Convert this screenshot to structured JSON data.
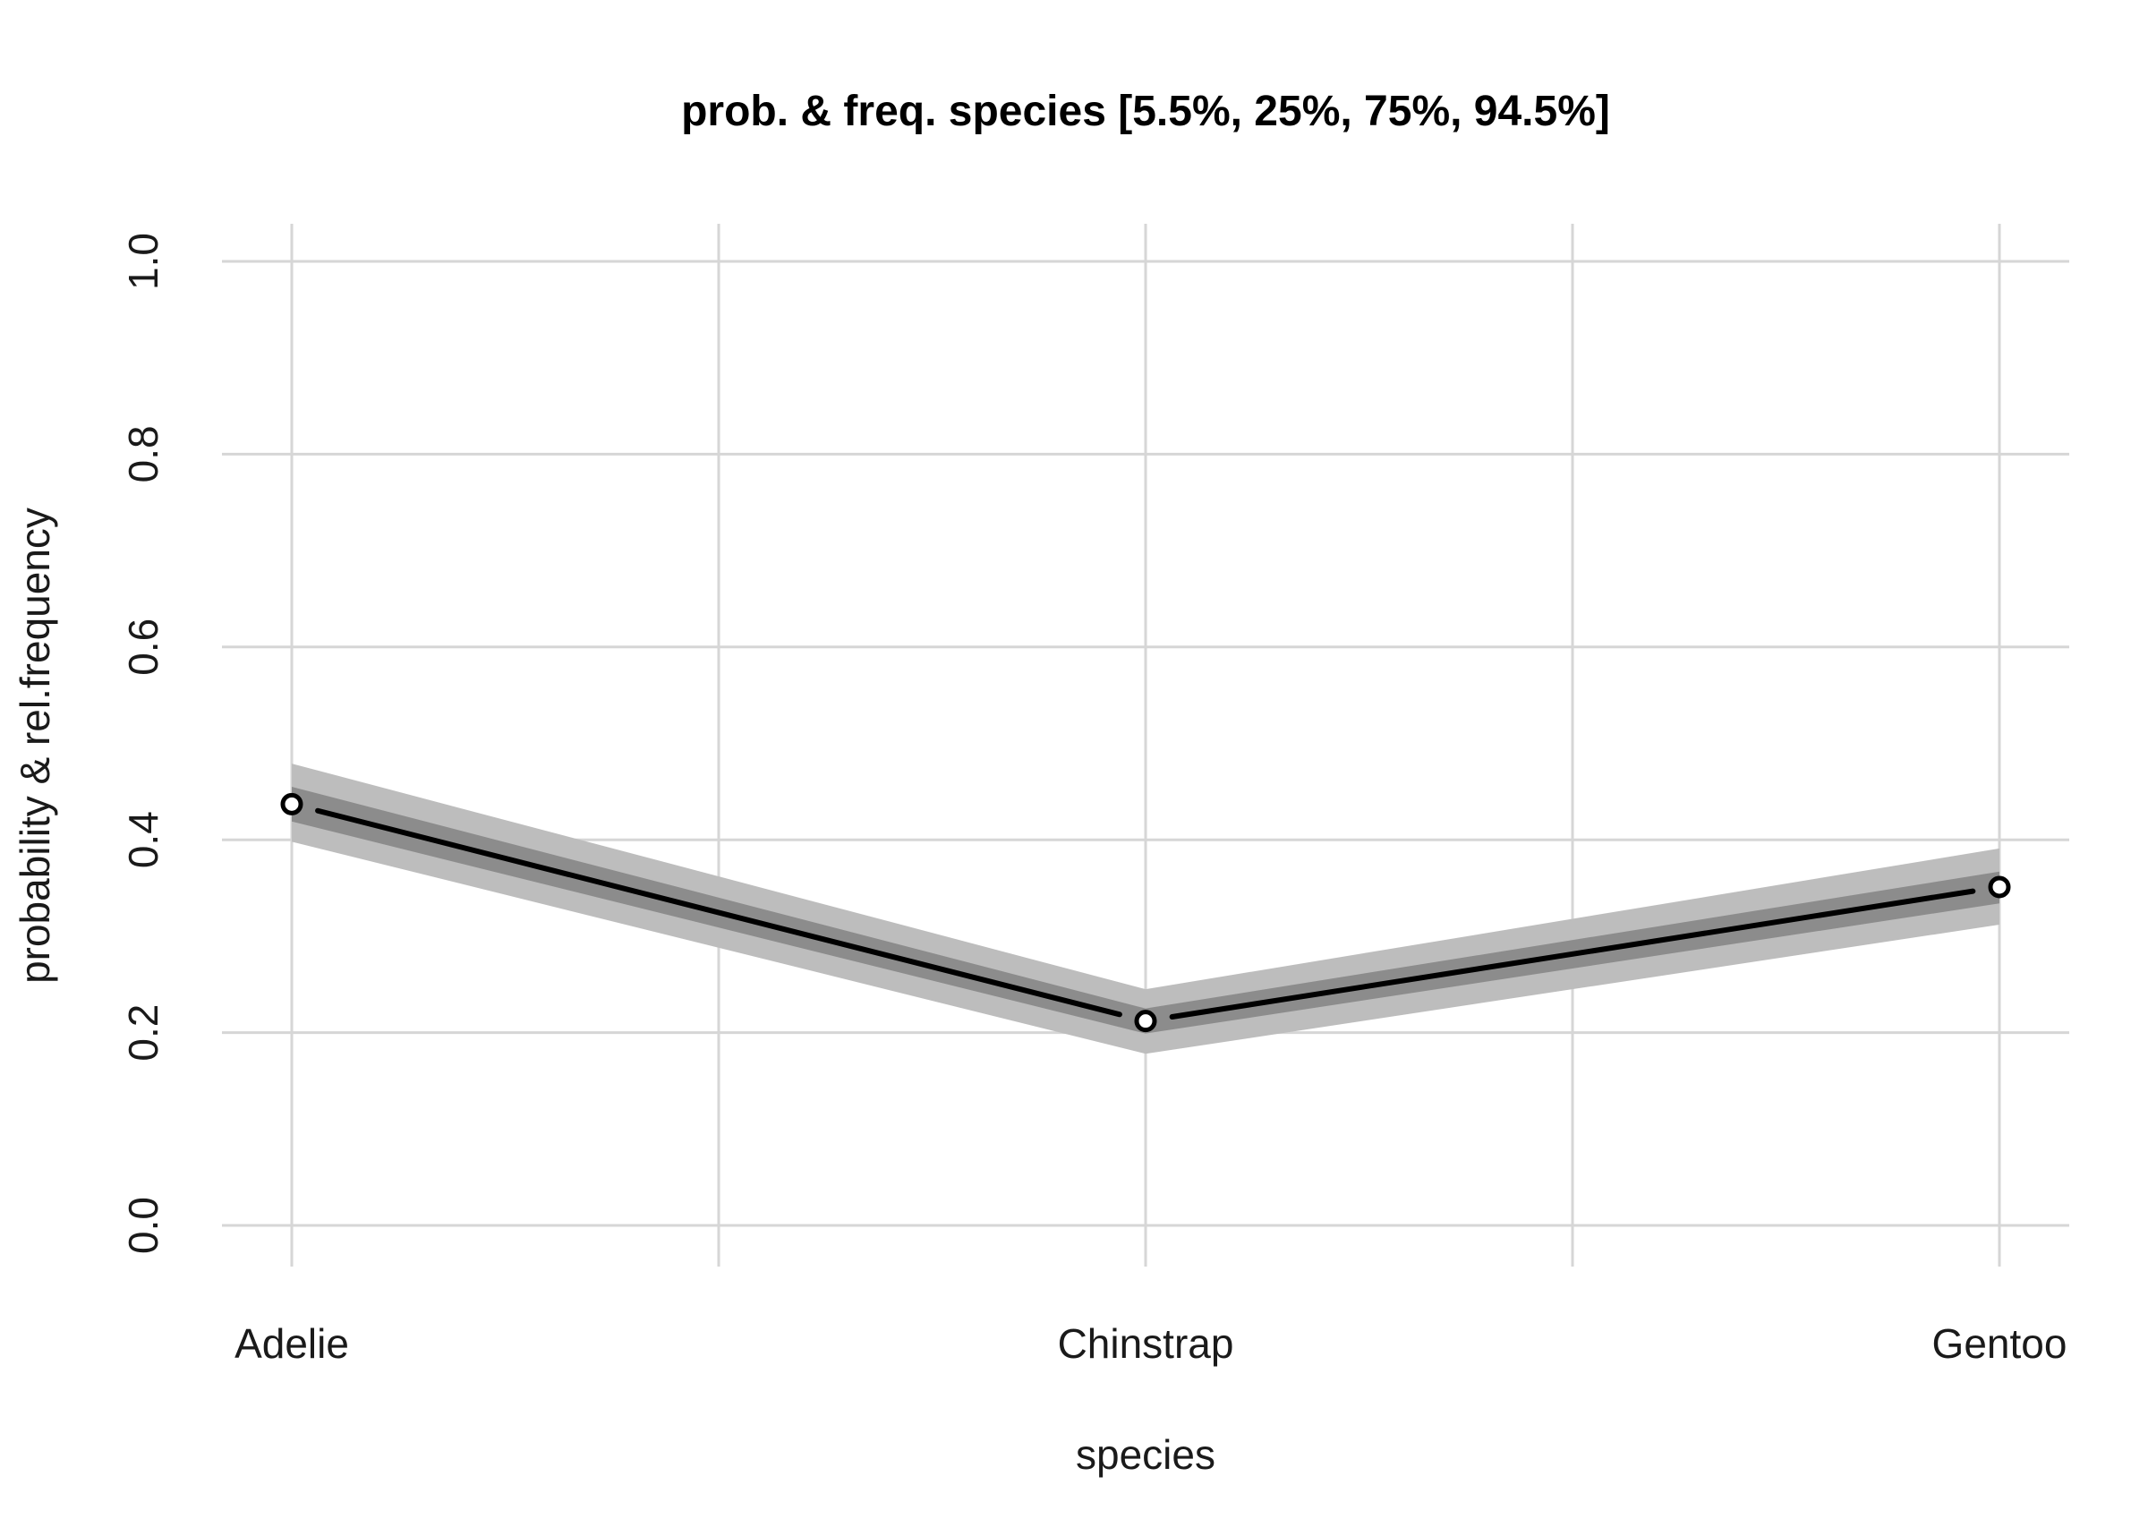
{
  "chart_data": {
    "type": "line",
    "title": "prob. & freq.  species  [5.5%, 25%, 75%, 94.5%]",
    "xlabel": "species",
    "ylabel": "probability & rel.frequency",
    "categories": [
      "Adelie",
      "Chinstrap",
      "Gentoo"
    ],
    "ylim": [
      0,
      1
    ],
    "yticks": [
      0.0,
      0.2,
      0.4,
      0.6,
      0.8,
      1.0
    ],
    "ytick_labels": [
      "0.0",
      "0.2",
      "0.4",
      "0.6",
      "0.8",
      "1.0"
    ],
    "grid": true,
    "series": [
      {
        "values": [
          0.437,
          0.212,
          0.351
        ],
        "band_outer_low": [
          0.398,
          0.178,
          0.312
        ],
        "band_outer_high": [
          0.479,
          0.245,
          0.391
        ],
        "band_inner_low": [
          0.419,
          0.199,
          0.334
        ],
        "band_inner_high": [
          0.455,
          0.225,
          0.367
        ]
      }
    ],
    "colors": {
      "line": "#000000",
      "band_outer": "#bdbdbd",
      "band_inner": "#8c8c8c",
      "point_fill": "#ffffff"
    }
  }
}
